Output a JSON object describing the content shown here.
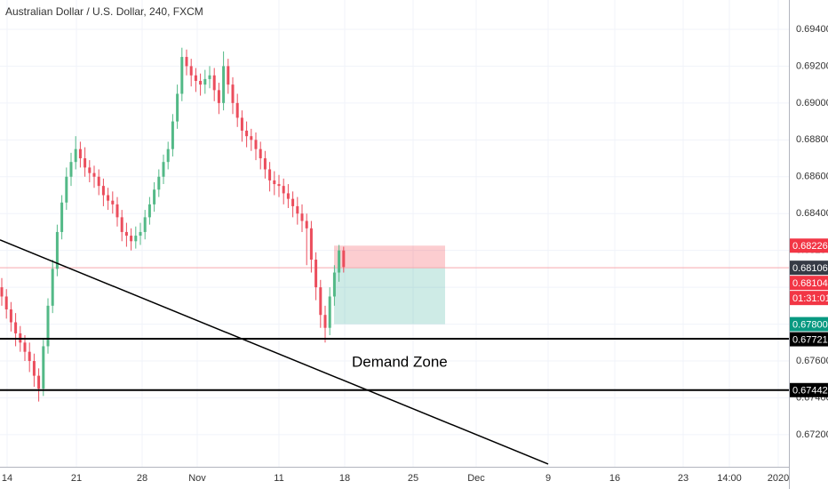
{
  "chart_data": {
    "type": "candlestick",
    "title": "Australian Dollar / U.S. Dollar, 240, FXCM",
    "up_color": "#53b987",
    "down_color": "#eb4d5c",
    "ylim": [
      0.67026,
      0.69559
    ],
    "yticks": [
      {
        "value": 0.672,
        "label": "0.67200"
      },
      {
        "value": 0.674,
        "label": "0.67400"
      },
      {
        "value": 0.676,
        "label": "0.67600"
      },
      {
        "value": 0.678,
        "label": "0.67800"
      },
      {
        "value": 0.68,
        "label": "0.68000"
      },
      {
        "value": 0.682,
        "label": "0.68200"
      },
      {
        "value": 0.684,
        "label": "0.68400"
      },
      {
        "value": 0.686,
        "label": "0.68600"
      },
      {
        "value": 0.688,
        "label": "0.68800"
      },
      {
        "value": 0.69,
        "label": "0.69000"
      },
      {
        "value": 0.692,
        "label": "0.69200"
      },
      {
        "value": 0.694,
        "label": "0.69400"
      }
    ],
    "xlabels": [
      "14",
      "21",
      "28",
      "Nov",
      "11",
      "18",
      "25",
      "Dec",
      "9",
      "16",
      "23",
      "14:00",
      "2020"
    ],
    "candles": [
      [
        0.68,
        0.6805,
        0.679,
        0.6795
      ],
      [
        0.6795,
        0.6799,
        0.6783,
        0.6788
      ],
      [
        0.6788,
        0.6792,
        0.6776,
        0.6781
      ],
      [
        0.6781,
        0.6786,
        0.6768,
        0.6775
      ],
      [
        0.6775,
        0.6779,
        0.6765,
        0.677
      ],
      [
        0.677,
        0.6774,
        0.676,
        0.6765
      ],
      [
        0.6765,
        0.677,
        0.6754,
        0.676
      ],
      [
        0.676,
        0.6764,
        0.6746,
        0.6752
      ],
      [
        0.6752,
        0.6756,
        0.6738,
        0.6745
      ],
      [
        0.6745,
        0.6772,
        0.6741,
        0.6768
      ],
      [
        0.6768,
        0.6794,
        0.6764,
        0.679
      ],
      [
        0.679,
        0.6815,
        0.6786,
        0.681
      ],
      [
        0.681,
        0.6834,
        0.6806,
        0.683
      ],
      [
        0.683,
        0.685,
        0.6826,
        0.6846
      ],
      [
        0.6846,
        0.6865,
        0.6842,
        0.686
      ],
      [
        0.686,
        0.6873,
        0.6855,
        0.6868
      ],
      [
        0.6868,
        0.6882,
        0.6864,
        0.6875
      ],
      [
        0.6875,
        0.6879,
        0.6865,
        0.687
      ],
      [
        0.687,
        0.6876,
        0.686,
        0.6865
      ],
      [
        0.6865,
        0.6869,
        0.6857,
        0.6862
      ],
      [
        0.6862,
        0.6866,
        0.6854,
        0.686
      ],
      [
        0.686,
        0.6864,
        0.685,
        0.6855
      ],
      [
        0.6855,
        0.6859,
        0.6844,
        0.685
      ],
      [
        0.685,
        0.6854,
        0.6842,
        0.6847
      ],
      [
        0.6847,
        0.6852,
        0.684,
        0.6845
      ],
      [
        0.6845,
        0.6849,
        0.6833,
        0.6838
      ],
      [
        0.6838,
        0.6842,
        0.6825,
        0.683
      ],
      [
        0.683,
        0.6835,
        0.6822,
        0.6828
      ],
      [
        0.6828,
        0.6832,
        0.682,
        0.6825
      ],
      [
        0.6825,
        0.6833,
        0.6821,
        0.6828
      ],
      [
        0.6828,
        0.6835,
        0.6823,
        0.683
      ],
      [
        0.683,
        0.6842,
        0.6826,
        0.6838
      ],
      [
        0.6838,
        0.6849,
        0.6834,
        0.6845
      ],
      [
        0.6845,
        0.6857,
        0.6841,
        0.6853
      ],
      [
        0.6853,
        0.6864,
        0.6849,
        0.686
      ],
      [
        0.686,
        0.6872,
        0.6856,
        0.6868
      ],
      [
        0.6868,
        0.6879,
        0.6864,
        0.6875
      ],
      [
        0.6875,
        0.6894,
        0.6871,
        0.689
      ],
      [
        0.689,
        0.691,
        0.6886,
        0.6905
      ],
      [
        0.6905,
        0.693,
        0.6901,
        0.6925
      ],
      [
        0.6925,
        0.6929,
        0.6915,
        0.692
      ],
      [
        0.692,
        0.6924,
        0.6909,
        0.6915
      ],
      [
        0.6915,
        0.6919,
        0.6906,
        0.6912
      ],
      [
        0.6912,
        0.6916,
        0.6904,
        0.691
      ],
      [
        0.691,
        0.6918,
        0.6905,
        0.6913
      ],
      [
        0.6913,
        0.692,
        0.6908,
        0.6915
      ],
      [
        0.6915,
        0.6919,
        0.6901,
        0.6907
      ],
      [
        0.6907,
        0.6911,
        0.6894,
        0.69
      ],
      [
        0.69,
        0.6928,
        0.6896,
        0.692
      ],
      [
        0.692,
        0.6924,
        0.6905,
        0.691
      ],
      [
        0.691,
        0.6914,
        0.6894,
        0.69
      ],
      [
        0.69,
        0.6905,
        0.6887,
        0.6892
      ],
      [
        0.6892,
        0.6896,
        0.6879,
        0.6885
      ],
      [
        0.6885,
        0.689,
        0.6876,
        0.6882
      ],
      [
        0.6882,
        0.6886,
        0.6874,
        0.688
      ],
      [
        0.688,
        0.6884,
        0.6869,
        0.6875
      ],
      [
        0.6875,
        0.6879,
        0.6864,
        0.687
      ],
      [
        0.687,
        0.6874,
        0.6859,
        0.6864
      ],
      [
        0.6864,
        0.6868,
        0.6852,
        0.6858
      ],
      [
        0.6858,
        0.6863,
        0.685,
        0.6856
      ],
      [
        0.6856,
        0.6861,
        0.6849,
        0.6855
      ],
      [
        0.6855,
        0.6859,
        0.6845,
        0.6851
      ],
      [
        0.6851,
        0.6856,
        0.6843,
        0.6848
      ],
      [
        0.6848,
        0.6852,
        0.6838,
        0.6844
      ],
      [
        0.6844,
        0.6849,
        0.6834,
        0.684
      ],
      [
        0.684,
        0.6845,
        0.683,
        0.6836
      ],
      [
        0.6836,
        0.684,
        0.6812,
        0.6832
      ],
      [
        0.6832,
        0.6836,
        0.6808,
        0.6815
      ],
      [
        0.6815,
        0.6819,
        0.6793,
        0.68
      ],
      [
        0.68,
        0.6804,
        0.6778,
        0.6785
      ],
      [
        0.6785,
        0.679,
        0.677,
        0.6778
      ],
      [
        0.6778,
        0.68,
        0.6774,
        0.6795
      ],
      [
        0.6795,
        0.6812,
        0.679,
        0.6808
      ],
      [
        0.6808,
        0.6823,
        0.6803,
        0.682
      ],
      [
        0.682,
        0.6822,
        0.6808,
        0.6811
      ]
    ],
    "position": {
      "stop": 0.68226,
      "entry": 0.68106,
      "target": 0.678
    },
    "current_price": 0.68106,
    "levels": [
      0.67721,
      0.67442
    ],
    "trendline": [
      0.68257,
      0.67041
    ],
    "annotation": "Demand Zone",
    "tags": [
      {
        "value": 0.68226,
        "label": "0.68226",
        "color": "#f23645"
      },
      {
        "value": 0.68106,
        "label": "0.68106",
        "color": "#363a45"
      },
      {
        "value": 0.68104,
        "label": "0.68104",
        "color": "#f23645"
      },
      {
        "label": "01:31:01",
        "color": "#f23645"
      },
      {
        "value": 0.678,
        "label": "0.67800",
        "color": "#089981"
      },
      {
        "value": 0.67721,
        "label": "0.67721",
        "color": "#000000"
      },
      {
        "value": 0.67442,
        "label": "0.67442",
        "color": "#000000"
      }
    ]
  }
}
